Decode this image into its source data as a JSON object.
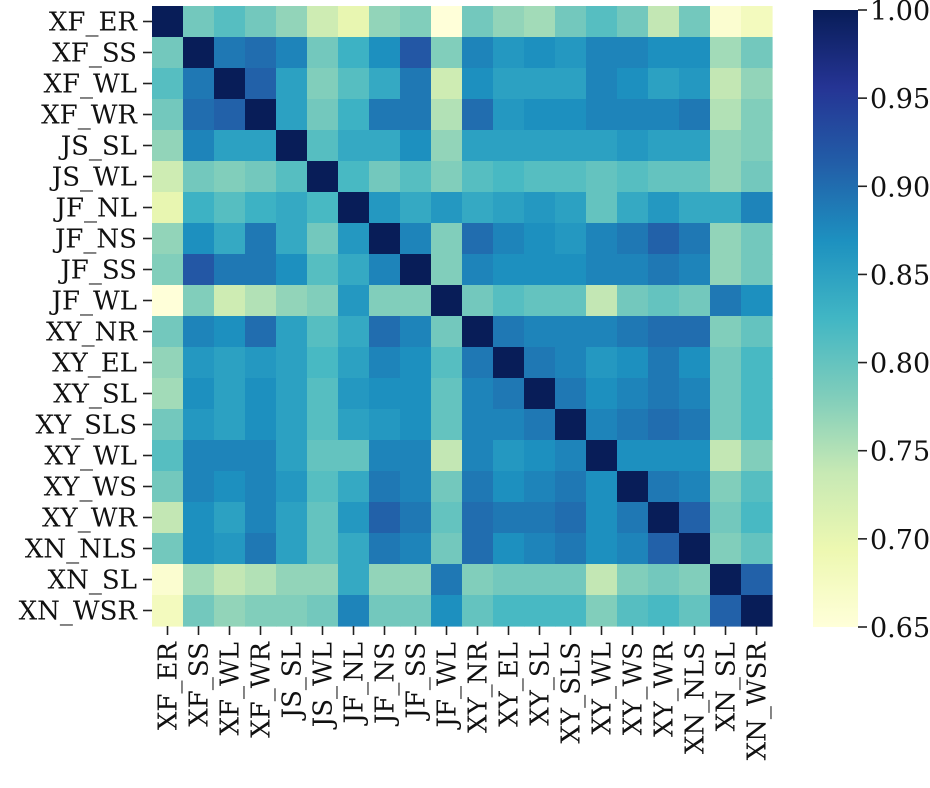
{
  "chart_data": {
    "type": "heatmap",
    "title": "",
    "xlabel": "",
    "ylabel": "",
    "labels": [
      "XF_ER",
      "XF_SS",
      "XF_WL",
      "XF_WR",
      "JS_SL",
      "JS_WL",
      "JF_NL",
      "JF_NS",
      "JF_SS",
      "JF_WL",
      "XY_NR",
      "XY_EL",
      "XY_SL",
      "XY_SLS",
      "XY_WL",
      "XY_WS",
      "XY_WR",
      "XN_NLS",
      "XN_SL",
      "XN_WSR"
    ],
    "matrix": [
      [
        1.0,
        0.79,
        0.81,
        0.79,
        0.77,
        0.73,
        0.7,
        0.77,
        0.78,
        0.65,
        0.79,
        0.77,
        0.76,
        0.79,
        0.81,
        0.79,
        0.74,
        0.79,
        0.66,
        0.68
      ],
      [
        0.79,
        1.0,
        0.89,
        0.9,
        0.88,
        0.79,
        0.83,
        0.87,
        0.92,
        0.78,
        0.88,
        0.86,
        0.87,
        0.86,
        0.88,
        0.88,
        0.87,
        0.87,
        0.76,
        0.79
      ],
      [
        0.81,
        0.89,
        1.0,
        0.91,
        0.85,
        0.78,
        0.81,
        0.84,
        0.89,
        0.73,
        0.87,
        0.85,
        0.85,
        0.85,
        0.88,
        0.87,
        0.85,
        0.86,
        0.74,
        0.77
      ],
      [
        0.79,
        0.9,
        0.91,
        1.0,
        0.85,
        0.79,
        0.83,
        0.89,
        0.89,
        0.75,
        0.9,
        0.86,
        0.87,
        0.87,
        0.88,
        0.88,
        0.88,
        0.89,
        0.75,
        0.78
      ],
      [
        0.77,
        0.88,
        0.85,
        0.85,
        1.0,
        0.81,
        0.84,
        0.84,
        0.87,
        0.77,
        0.85,
        0.85,
        0.85,
        0.85,
        0.85,
        0.86,
        0.85,
        0.85,
        0.77,
        0.78
      ],
      [
        0.73,
        0.79,
        0.78,
        0.79,
        0.81,
        1.0,
        0.82,
        0.79,
        0.81,
        0.78,
        0.81,
        0.82,
        0.81,
        0.81,
        0.8,
        0.81,
        0.8,
        0.8,
        0.77,
        0.79
      ],
      [
        0.7,
        0.83,
        0.81,
        0.83,
        0.84,
        0.82,
        1.0,
        0.86,
        0.84,
        0.86,
        0.84,
        0.85,
        0.86,
        0.85,
        0.8,
        0.84,
        0.86,
        0.84,
        0.84,
        0.88
      ],
      [
        0.77,
        0.87,
        0.84,
        0.89,
        0.84,
        0.79,
        0.86,
        1.0,
        0.88,
        0.78,
        0.9,
        0.88,
        0.87,
        0.86,
        0.88,
        0.89,
        0.91,
        0.89,
        0.77,
        0.79
      ],
      [
        0.78,
        0.92,
        0.89,
        0.89,
        0.87,
        0.81,
        0.84,
        0.88,
        1.0,
        0.78,
        0.88,
        0.87,
        0.87,
        0.87,
        0.88,
        0.88,
        0.89,
        0.88,
        0.77,
        0.79
      ],
      [
        0.65,
        0.78,
        0.73,
        0.75,
        0.77,
        0.78,
        0.86,
        0.78,
        0.78,
        1.0,
        0.79,
        0.81,
        0.8,
        0.8,
        0.74,
        0.79,
        0.8,
        0.79,
        0.89,
        0.87
      ],
      [
        0.79,
        0.88,
        0.87,
        0.9,
        0.85,
        0.81,
        0.84,
        0.9,
        0.88,
        0.79,
        1.0,
        0.89,
        0.88,
        0.88,
        0.88,
        0.89,
        0.9,
        0.9,
        0.78,
        0.8
      ],
      [
        0.77,
        0.86,
        0.85,
        0.86,
        0.85,
        0.82,
        0.85,
        0.88,
        0.87,
        0.81,
        0.89,
        1.0,
        0.89,
        0.88,
        0.86,
        0.87,
        0.89,
        0.87,
        0.79,
        0.82
      ],
      [
        0.76,
        0.87,
        0.85,
        0.87,
        0.85,
        0.81,
        0.86,
        0.87,
        0.87,
        0.8,
        0.88,
        0.89,
        1.0,
        0.89,
        0.87,
        0.88,
        0.89,
        0.88,
        0.79,
        0.82
      ],
      [
        0.79,
        0.86,
        0.85,
        0.87,
        0.85,
        0.81,
        0.85,
        0.86,
        0.87,
        0.8,
        0.88,
        0.88,
        0.89,
        1.0,
        0.88,
        0.89,
        0.9,
        0.89,
        0.79,
        0.82
      ],
      [
        0.81,
        0.88,
        0.88,
        0.88,
        0.85,
        0.8,
        0.8,
        0.88,
        0.88,
        0.74,
        0.88,
        0.86,
        0.87,
        0.88,
        1.0,
        0.87,
        0.87,
        0.87,
        0.74,
        0.78
      ],
      [
        0.79,
        0.88,
        0.87,
        0.88,
        0.86,
        0.81,
        0.84,
        0.89,
        0.88,
        0.79,
        0.89,
        0.87,
        0.88,
        0.89,
        0.87,
        1.0,
        0.89,
        0.88,
        0.78,
        0.81
      ],
      [
        0.74,
        0.87,
        0.85,
        0.88,
        0.85,
        0.8,
        0.86,
        0.91,
        0.89,
        0.8,
        0.9,
        0.89,
        0.89,
        0.9,
        0.87,
        0.89,
        1.0,
        0.91,
        0.79,
        0.82
      ],
      [
        0.79,
        0.87,
        0.86,
        0.89,
        0.85,
        0.8,
        0.84,
        0.89,
        0.88,
        0.79,
        0.9,
        0.87,
        0.88,
        0.89,
        0.87,
        0.88,
        0.91,
        1.0,
        0.78,
        0.8
      ],
      [
        0.66,
        0.76,
        0.74,
        0.75,
        0.77,
        0.77,
        0.84,
        0.77,
        0.77,
        0.89,
        0.78,
        0.79,
        0.79,
        0.79,
        0.74,
        0.78,
        0.79,
        0.78,
        1.0,
        0.91
      ],
      [
        0.68,
        0.79,
        0.77,
        0.78,
        0.78,
        0.79,
        0.88,
        0.79,
        0.79,
        0.87,
        0.8,
        0.82,
        0.82,
        0.82,
        0.78,
        0.81,
        0.82,
        0.8,
        0.91,
        1.0
      ]
    ],
    "colorbar": {
      "colormap": "YlGnBu",
      "vmin": 0.65,
      "vmax": 1.0,
      "ticks": [
        "1.00",
        "0.95",
        "0.90",
        "0.85",
        "0.80",
        "0.75",
        "0.70",
        "0.65"
      ],
      "tick_values": [
        1.0,
        0.95,
        0.9,
        0.85,
        0.8,
        0.75,
        0.7,
        0.65
      ]
    },
    "grid": false,
    "legend": "colorbar-right"
  }
}
